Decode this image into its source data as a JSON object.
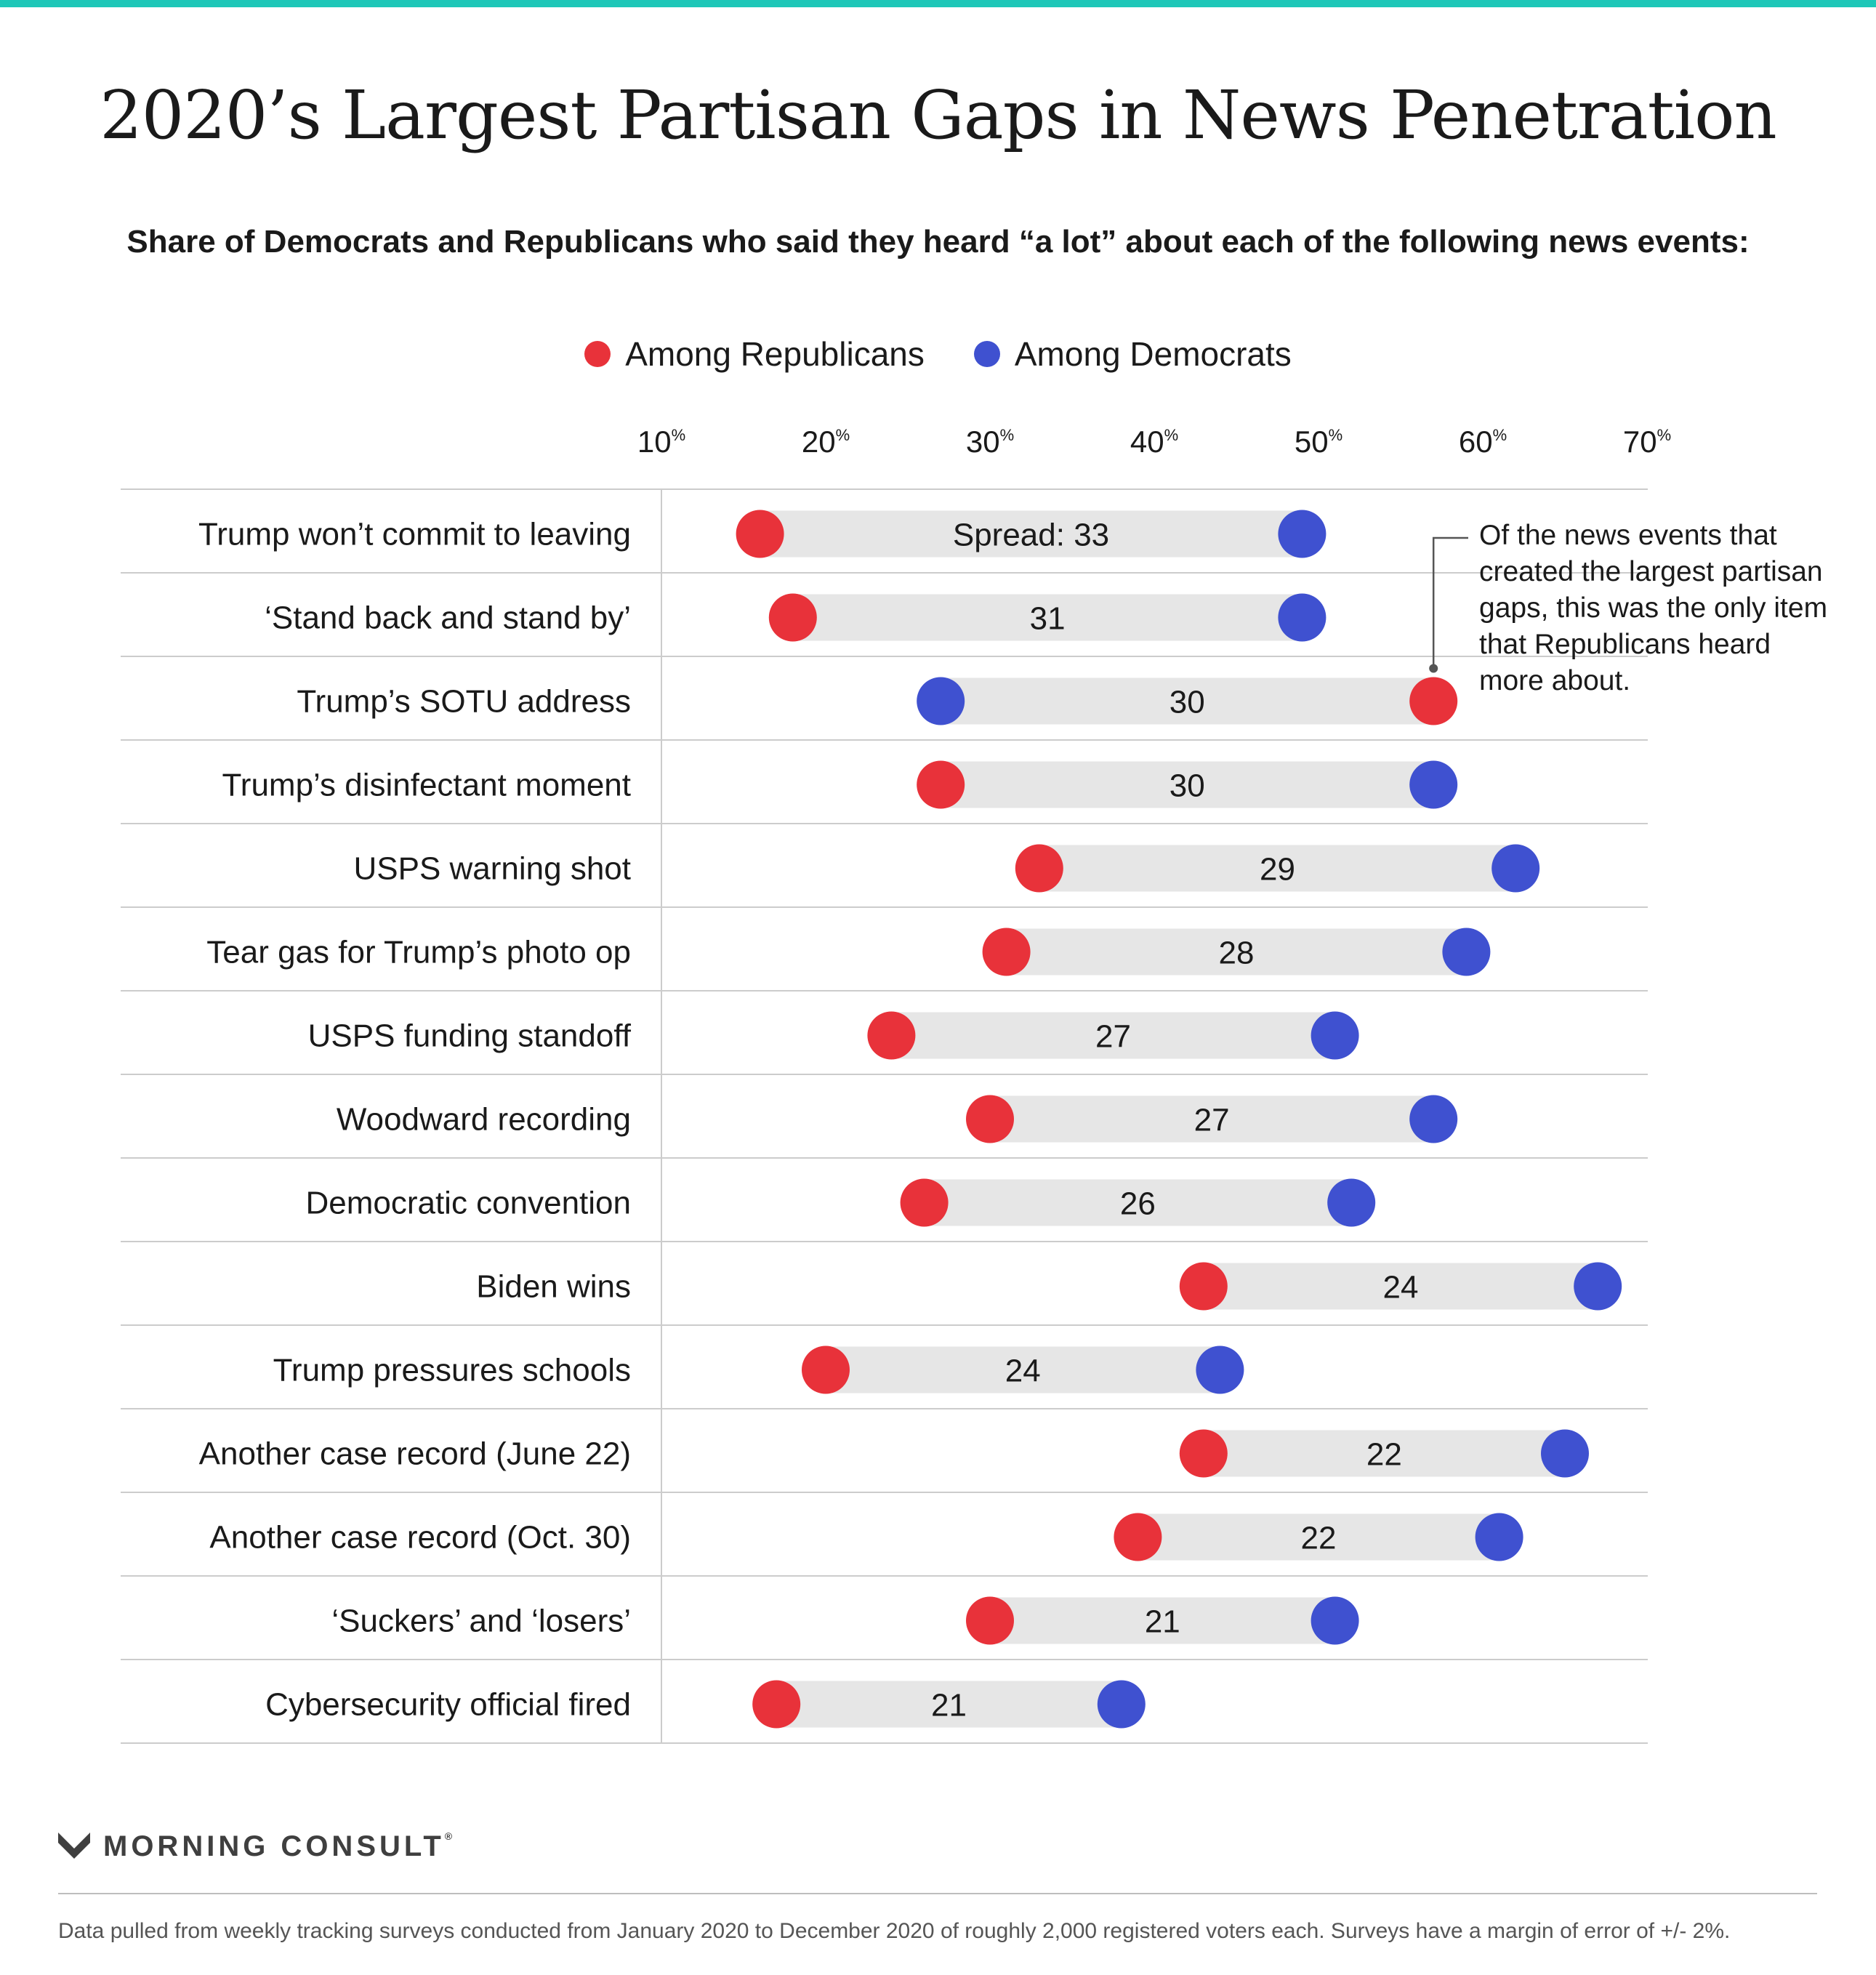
{
  "colors": {
    "accent_top": "#1ec7b8",
    "republican": "#e8323a",
    "democrat": "#3f51d0",
    "bar": "#e6e6e6",
    "gridline": "#cccccc"
  },
  "title": "2020’s Largest Partisan Gaps in News Penetration",
  "subtitle": "Share of Democrats and Republicans who said they heard “a lot” about each of the following news events:",
  "legend": {
    "republicans": "Among Republicans",
    "democrats": "Among Democrats"
  },
  "annotation": "Of the news events that created the largest partisan gaps, this was the only item that Republicans heard more about.",
  "brand": {
    "name": "MORNING CONSULT",
    "mark": "®",
    "logo_icon": "morning-consult-logo-icon"
  },
  "footnote": "Data pulled from weekly tracking surveys conducted from January 2020 to December 2020 of roughly 2,000 registered voters each. Surveys have a margin of error of +/- 2%.",
  "chart_data": {
    "type": "dumbbell",
    "xlim": [
      10,
      70
    ],
    "x_ticks": [
      {
        "value": 10,
        "label": "10",
        "unit": "%"
      },
      {
        "value": 20,
        "label": "20",
        "unit": "%"
      },
      {
        "value": 30,
        "label": "30",
        "unit": "%"
      },
      {
        "value": 40,
        "label": "40",
        "unit": "%"
      },
      {
        "value": 50,
        "label": "50",
        "unit": "%"
      },
      {
        "value": 60,
        "label": "60",
        "unit": "%"
      },
      {
        "value": 70,
        "label": "70",
        "unit": "%"
      }
    ],
    "categories": [
      "Trump won’t commit to leaving",
      "‘Stand back and stand by’",
      "Trump’s SOTU address",
      "Trump’s disinfectant moment",
      "USPS warning shot",
      "Tear gas for Trump’s photo op",
      "USPS funding standoff",
      "Woodward recording",
      "Democratic convention",
      "Biden wins",
      "Trump pressures schools",
      "Another case record (June 22)",
      "Another case record (Oct. 30)",
      "‘Suckers’ and ‘losers’",
      "Cybersecurity official fired"
    ],
    "series": [
      {
        "name": "Among Republicans",
        "values": [
          16,
          18,
          57,
          27,
          33,
          31,
          24,
          30,
          26,
          43,
          20,
          43,
          39,
          30,
          17
        ]
      },
      {
        "name": "Among Democrats",
        "values": [
          49,
          49,
          27,
          57,
          62,
          59,
          51,
          57,
          52,
          67,
          44,
          65,
          61,
          51,
          38
        ]
      }
    ],
    "spread_labels": [
      "Spread: 33",
      "31",
      "30",
      "30",
      "29",
      "28",
      "27",
      "27",
      "26",
      "24",
      "24",
      "22",
      "22",
      "21",
      "21"
    ],
    "annotated_category": "Trump’s SOTU address"
  }
}
